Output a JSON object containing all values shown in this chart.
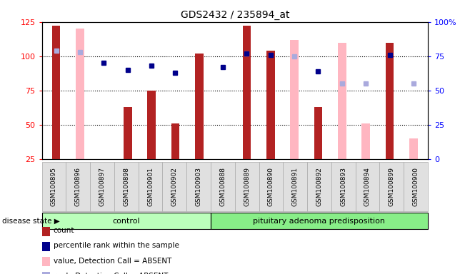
{
  "title": "GDS2432 / 235894_at",
  "samples": [
    "GSM100895",
    "GSM100896",
    "GSM100897",
    "GSM100898",
    "GSM100901",
    "GSM100902",
    "GSM100903",
    "GSM100888",
    "GSM100889",
    "GSM100890",
    "GSM100891",
    "GSM100892",
    "GSM100893",
    "GSM100894",
    "GSM100899",
    "GSM100900"
  ],
  "count_values": [
    122,
    null,
    null,
    63,
    75,
    51,
    102,
    null,
    122,
    104,
    null,
    63,
    null,
    null,
    110,
    null
  ],
  "count_absent_values": [
    null,
    120,
    null,
    null,
    null,
    null,
    null,
    null,
    null,
    null,
    112,
    null,
    110,
    51,
    null,
    40
  ],
  "percentile_rank": [
    null,
    null,
    95,
    90,
    93,
    88,
    null,
    92,
    102,
    101,
    null,
    89,
    null,
    null,
    101,
    null
  ],
  "rank_absent": [
    104,
    103,
    null,
    null,
    null,
    null,
    null,
    null,
    102,
    null,
    100,
    null,
    80,
    80,
    null,
    80
  ],
  "bar_color_dark_red": "#b22222",
  "bar_color_pink": "#ffb6c1",
  "dot_color_blue": "#00008b",
  "dot_color_light_blue": "#aaaadd",
  "control_count": 7,
  "pituitary_count": 9,
  "control_label": "control",
  "pituitary_label": "pituitary adenoma predisposition",
  "group_band_color_light": "#ccffcc",
  "group_band_color_dark": "#88ee88",
  "disease_state_label": "disease state",
  "legend_labels": [
    "count",
    "percentile rank within the sample",
    "value, Detection Call = ABSENT",
    "rank, Detection Call = ABSENT"
  ]
}
